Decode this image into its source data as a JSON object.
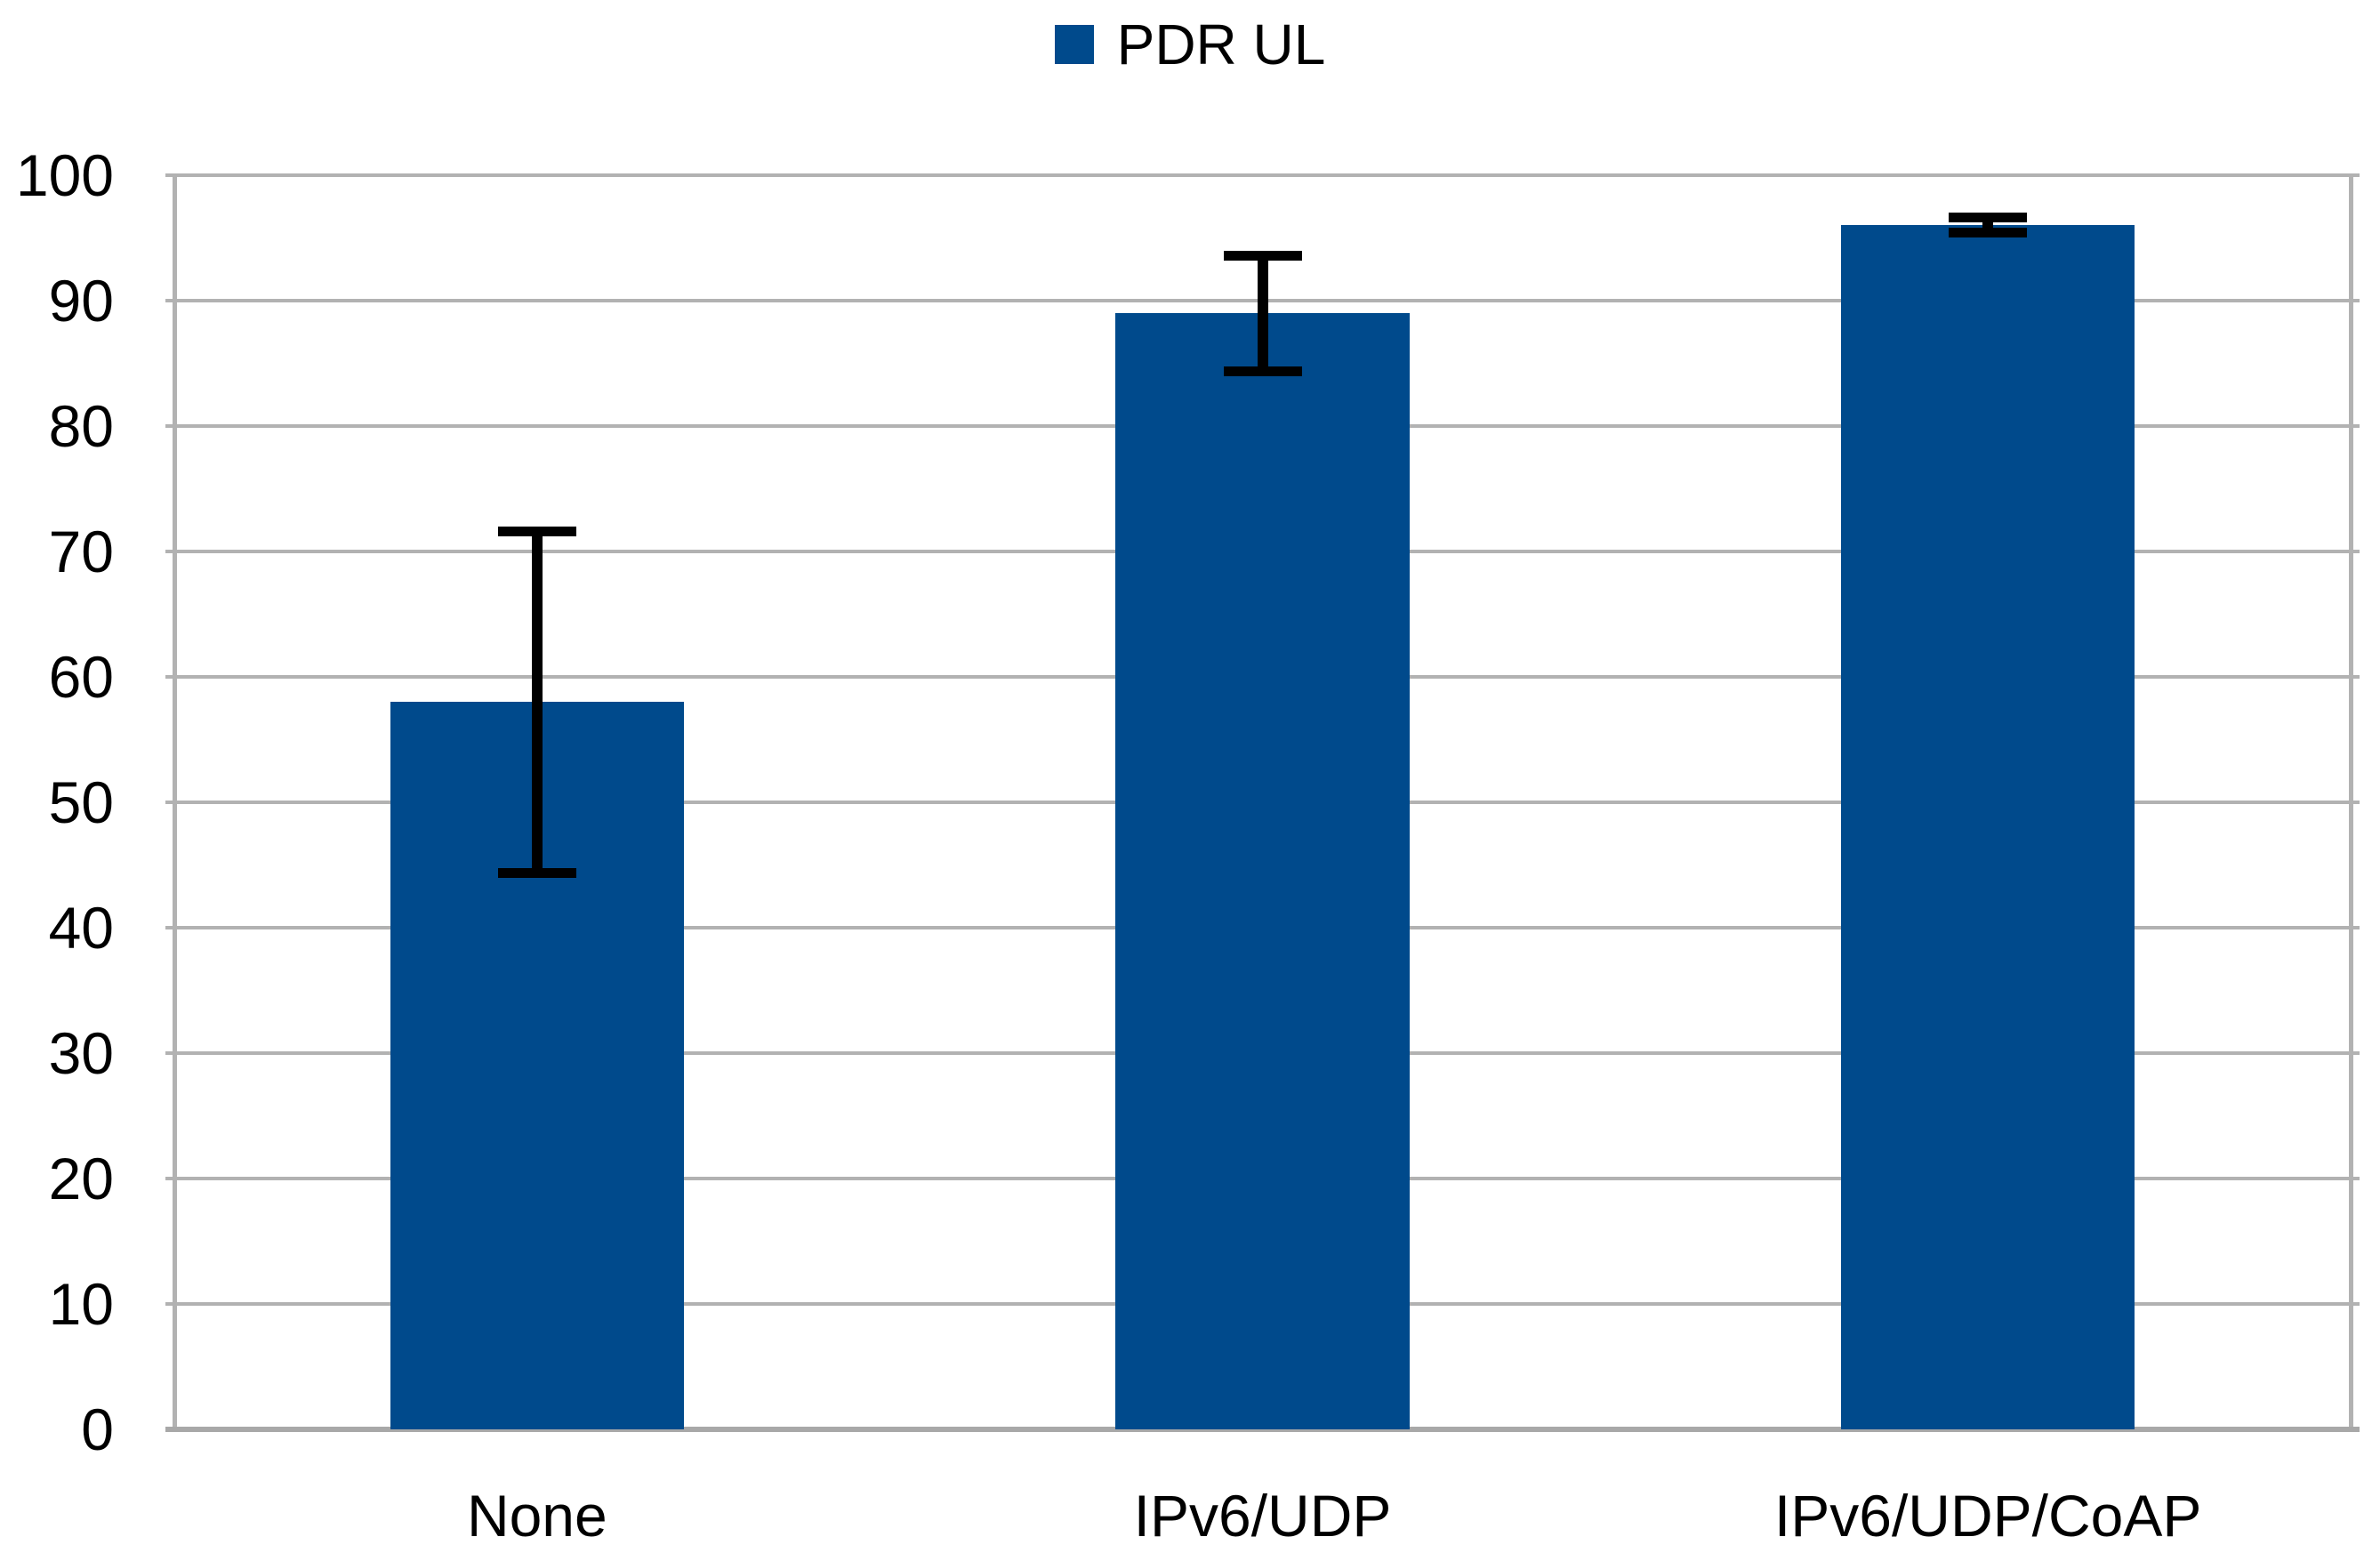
{
  "legend": {
    "label": "PDR UL"
  },
  "colors": {
    "bar": "#004a8c",
    "gridline": "#b2b2b2",
    "axis": "#a8a8a8",
    "error_bar": "#000000",
    "text": "#000000",
    "background": "#ffffff"
  },
  "chart_data": {
    "type": "bar",
    "title": "",
    "xlabel": "",
    "ylabel": "",
    "categories": [
      "None",
      "IPv6/UDP",
      "IPv6/UDP/CoAP"
    ],
    "series": [
      {
        "name": "PDR UL",
        "values": [
          58,
          89,
          96
        ],
        "error_low": [
          44,
          84,
          95
        ],
        "error_high": [
          72,
          94,
          97
        ]
      }
    ],
    "ylim": [
      0,
      100
    ],
    "yticks": [
      0,
      10,
      20,
      30,
      40,
      50,
      60,
      70,
      80,
      90,
      100
    ],
    "grid": true,
    "legend_position": "top-center",
    "bar_gap_ratio": 0.405
  }
}
